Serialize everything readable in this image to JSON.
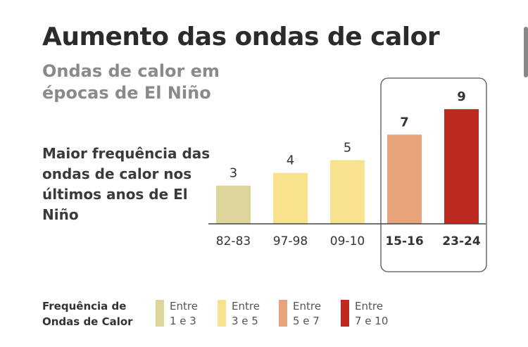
{
  "chart_data": {
    "type": "bar",
    "title": "Aumento das ondas de calor",
    "subtitle": "Ondas de calor em épocas de El Niño",
    "description": "Maior frequência das ondas de calor nos últimos anos de El Niño",
    "categories": [
      "82-83",
      "97-98",
      "09-10",
      "15-16",
      "23-24"
    ],
    "values": [
      3,
      4,
      5,
      7,
      9
    ],
    "highlighted": [
      "15-16",
      "23-24"
    ],
    "bar_colors": [
      "#ddd59c",
      "#f8e28e",
      "#f7e38f",
      "#e7a37b",
      "#bd2a20"
    ],
    "ylim": [
      0,
      9
    ],
    "grid": false,
    "xlabel": "",
    "ylabel": "",
    "legend": {
      "title": "Frequência de Ondas de Calor",
      "placement": "bottom",
      "items": [
        {
          "line1": "Entre",
          "line2": "1 e 3",
          "color": "#ddd59c"
        },
        {
          "line1": "Entre",
          "line2": "3 e 5",
          "color": "#f8e28e"
        },
        {
          "line1": "Entre",
          "line2": "5 e 7",
          "color": "#e7a37b"
        },
        {
          "line1": "Entre",
          "line2": "7 e 10",
          "color": "#bd2a20"
        }
      ]
    }
  }
}
